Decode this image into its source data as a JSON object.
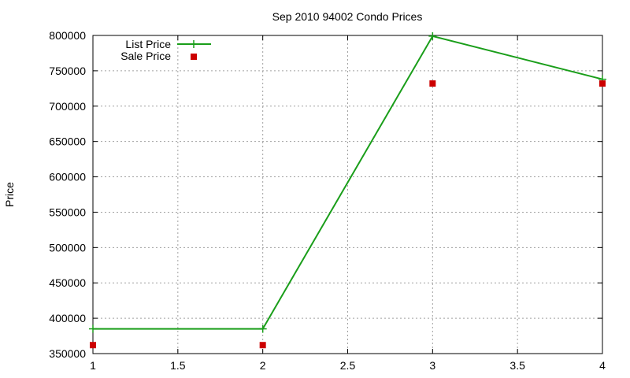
{
  "chart_data": {
    "type": "line",
    "title": "Sep 2010 94002 Condo Prices",
    "xlabel": "",
    "ylabel": "Price",
    "xlim": [
      1,
      4
    ],
    "ylim": [
      350000,
      800000
    ],
    "xticks": [
      1,
      1.5,
      2,
      2.5,
      3,
      3.5,
      4
    ],
    "xtick_labels": [
      "1",
      "1.5",
      "2",
      "2.5",
      "3",
      "3.5",
      "4"
    ],
    "yticks": [
      350000,
      400000,
      450000,
      500000,
      550000,
      600000,
      650000,
      700000,
      750000,
      800000
    ],
    "ytick_labels": [
      "350000",
      "400000",
      "450000",
      "500000",
      "550000",
      "600000",
      "650000",
      "700000",
      "750000",
      "800000"
    ],
    "grid": true,
    "legend_position": "top-left",
    "series": [
      {
        "name": "List Price",
        "style": "line-plus",
        "color": "#1a9e1a",
        "x": [
          1,
          2,
          3,
          4
        ],
        "values": [
          385000,
          385000,
          799000,
          738000
        ]
      },
      {
        "name": "Sale Price",
        "style": "square-marker",
        "color": "#cc0000",
        "x": [
          1,
          2,
          3,
          4
        ],
        "values": [
          362000,
          362000,
          732000,
          732000
        ]
      }
    ]
  }
}
